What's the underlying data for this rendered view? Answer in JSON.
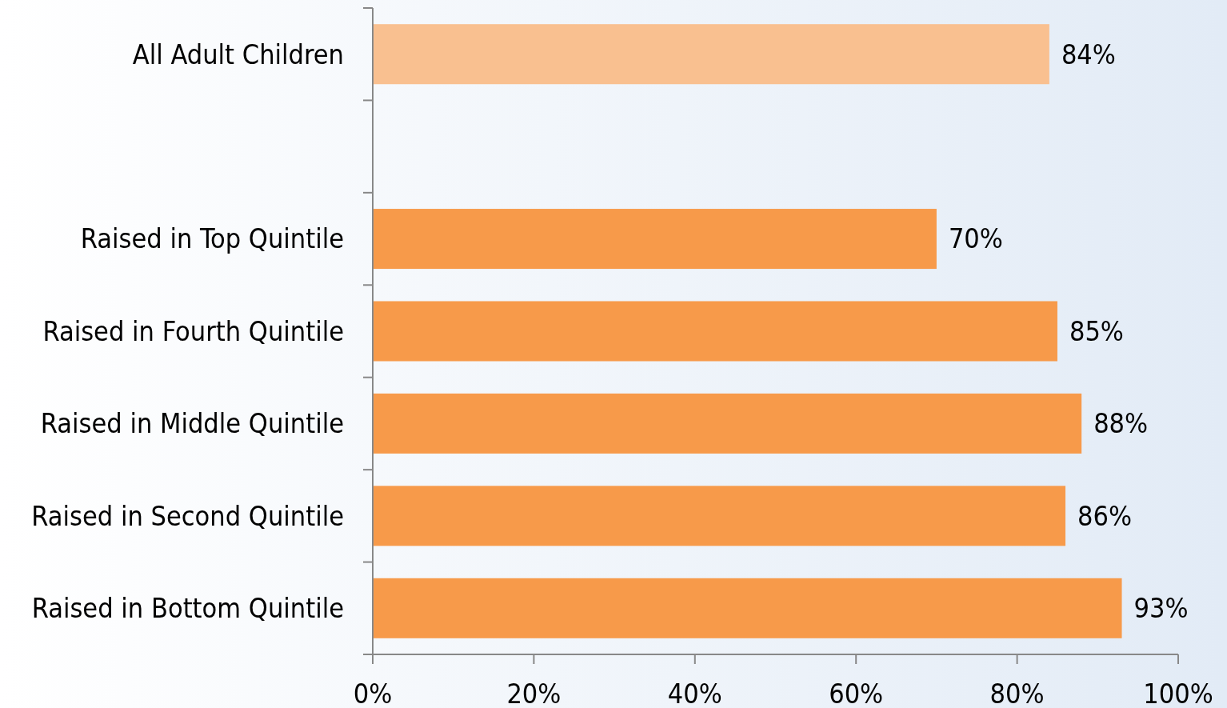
{
  "chart_data": {
    "type": "bar",
    "orientation": "horizontal",
    "categories": [
      "All Adult Children",
      null,
      "Raised in Top Quintile",
      "Raised in Fourth Quintile",
      "Raised in Middle Quintile",
      "Raised in Second Quintile",
      "Raised in Bottom Quintile"
    ],
    "values": [
      84,
      null,
      70,
      85,
      88,
      86,
      93
    ],
    "colors": [
      "#f9c090",
      "#f79a4a",
      "#f79a4a",
      "#f79a4a",
      "#f79a4a",
      "#f79a4a",
      "#f79a4a"
    ],
    "value_labels": [
      "84%",
      null,
      "70%",
      "85%",
      "88%",
      "86%",
      "93%"
    ],
    "xlim": [
      0,
      100
    ],
    "xticks": [
      {
        "value": 0,
        "label": "0%"
      },
      {
        "value": 20,
        "label": "20%"
      },
      {
        "value": 40,
        "label": "40%"
      },
      {
        "value": 60,
        "label": "60%"
      },
      {
        "value": 80,
        "label": "80%"
      },
      {
        "value": 100,
        "label": "100%"
      }
    ],
    "grid": false
  }
}
